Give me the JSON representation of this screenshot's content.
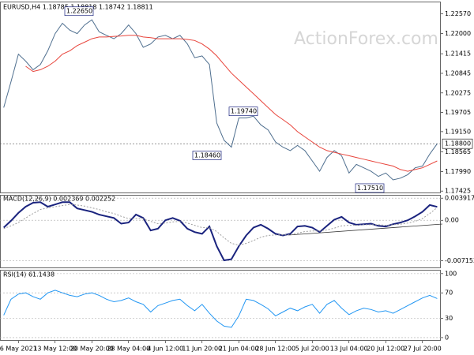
{
  "chart_data": [
    {
      "type": "line",
      "title": "EURUSD,H4  1.18785 1.18818 1.18742 1.18811",
      "watermark": "ActionForex.com",
      "ylim": [
        1.1736,
        1.2293
      ],
      "yticks": [
        {
          "value": 1.2257,
          "label": "1.22570"
        },
        {
          "value": 1.22,
          "label": "1.22000"
        },
        {
          "value": 1.21415,
          "label": "1.21415"
        },
        {
          "value": 1.20845,
          "label": "1.20845"
        },
        {
          "value": 1.20275,
          "label": "1.20275"
        },
        {
          "value": 1.19705,
          "label": "1.19705"
        },
        {
          "value": 1.1915,
          "label": "1.19150"
        },
        {
          "value": 1.18565,
          "label": "1.18565"
        },
        {
          "value": 1.1799,
          "label": "1.17990"
        },
        {
          "value": 1.17425,
          "label": "1.17425"
        }
      ],
      "price_line": {
        "value": 1.188,
        "label": "1.18800"
      },
      "annotations": [
        {
          "value": 1.2265,
          "label": "1.22650"
        },
        {
          "value": 1.1974,
          "label": "1.19740"
        },
        {
          "value": 1.1846,
          "label": "1.18460"
        },
        {
          "value": 1.1751,
          "label": "1.17510"
        }
      ],
      "series": [
        {
          "color": "#4f6f8f",
          "values": [
            1.1985,
            1.206,
            1.214,
            1.212,
            1.2095,
            1.211,
            1.215,
            1.22,
            1.223,
            1.221,
            1.22,
            1.2225,
            1.224,
            1.2205,
            1.2195,
            1.2185,
            1.22,
            1.2225,
            1.22,
            1.216,
            1.217,
            1.219,
            1.2195,
            1.2185,
            1.2195,
            1.217,
            1.213,
            1.2135,
            1.211,
            1.194,
            1.189,
            1.187,
            1.1955,
            1.1955,
            1.196,
            1.1935,
            1.192,
            1.1885,
            1.187,
            1.186,
            1.1875,
            1.186,
            1.183,
            1.18,
            1.184,
            1.186,
            1.1845,
            1.1795,
            1.182,
            1.181,
            1.18,
            1.1785,
            1.1795,
            1.1775,
            1.178,
            1.179,
            1.181,
            1.1815,
            1.185,
            1.188
          ]
        },
        {
          "color": "#e8453c",
          "values": [
            null,
            null,
            null,
            1.2105,
            1.209,
            1.2095,
            1.2105,
            1.212,
            1.214,
            1.215,
            1.2165,
            1.2175,
            1.2185,
            1.219,
            1.219,
            1.2192,
            1.2193,
            1.2195,
            1.2195,
            1.219,
            1.2188,
            1.2185,
            1.2185,
            1.2185,
            1.2185,
            1.2183,
            1.218,
            1.217,
            1.2155,
            1.2135,
            1.211,
            1.2085,
            1.2065,
            1.2045,
            1.2025,
            1.2005,
            1.1985,
            1.1965,
            1.195,
            1.1935,
            1.1915,
            1.19,
            1.1885,
            1.187,
            1.186,
            1.1855,
            1.185,
            1.1845,
            1.184,
            1.1835,
            1.183,
            1.1825,
            1.182,
            1.1815,
            1.1805,
            1.18,
            1.1805,
            1.181,
            1.182,
            1.183
          ]
        }
      ]
    },
    {
      "type": "line",
      "title": "MACD(12,26,9) 0.002369 0.002252",
      "ylim": [
        -0.0085,
        0.0045
      ],
      "yticks": [
        0.003917,
        {
          "value": 0,
          "label": "0.00"
        },
        -0.007152
      ],
      "series": [
        {
          "color": "#1a237e",
          "values": [
            -0.0013,
            -0.0001,
            0.0013,
            0.0024,
            0.0031,
            0.0032,
            0.0024,
            0.0028,
            0.0032,
            0.0032,
            0.0021,
            0.0018,
            0.0015,
            0.001,
            0.0007,
            0.0004,
            -0.0006,
            -0.0004,
            0.001,
            0.0004,
            -0.0018,
            -0.0015,
            0,
            0.0004,
            -0.0001,
            -0.0015,
            -0.0021,
            -0.0024,
            -0.0011,
            -0.0046,
            -0.0071,
            -0.0069,
            -0.0046,
            -0.0027,
            -0.0013,
            -0.0008,
            -0.0015,
            -0.0024,
            -0.0027,
            -0.0024,
            -0.0011,
            -0.001,
            -0.0013,
            -0.0021,
            -0.001,
            0.0001,
            0.0006,
            -0.0004,
            -0.0008,
            -0.0007,
            -0.0006,
            -0.001,
            -0.0011,
            -0.0007,
            -0.0004,
            0,
            0.0007,
            0.0015,
            0.0027,
            0.002369
          ]
        },
        {
          "color": "#9e9e9e",
          "values": [
            -0.0015,
            -0.001,
            -0.0004,
            0.0004,
            0.0012,
            0.0019,
            0.0022,
            0.0024,
            0.0026,
            0.0028,
            0.0027,
            0.0025,
            0.0022,
            0.0019,
            0.0015,
            0.0012,
            0.0007,
            0.0003,
            0.0003,
            0.0003,
            -0.0002,
            -0.0006,
            -0.0005,
            -0.0003,
            -0.0002,
            -0.0005,
            -0.0009,
            -0.0013,
            -0.0013,
            -0.002,
            -0.0031,
            -0.0041,
            -0.0044,
            -0.0041,
            -0.0036,
            -0.003,
            -0.0027,
            -0.0026,
            -0.0026,
            -0.0026,
            -0.0023,
            -0.002,
            -0.0019,
            -0.0019,
            -0.0017,
            -0.0014,
            -0.001,
            -0.0009,
            -0.0009,
            -0.0008,
            -0.0008,
            -0.0008,
            -0.0009,
            -0.0008,
            -0.0007,
            -0.0005,
            -0.0002,
            0.0003,
            0.0012,
            0.002252
          ]
        }
      ]
    },
    {
      "type": "line",
      "title": "RSI(14) 61.1438",
      "ylim": [
        -5,
        106
      ],
      "yticks": [
        100,
        70,
        30,
        0
      ],
      "categories": [
        null,
        null,
        "6 May 2021",
        null,
        null,
        null,
        null,
        "13 May 12:00",
        null,
        null,
        null,
        null,
        "20 May 20:00",
        null,
        null,
        null,
        null,
        "28 May 04:00",
        null,
        null,
        null,
        null,
        "4 Jun 12:00",
        null,
        null,
        null,
        null,
        "11 Jun 20:00",
        null,
        null,
        null,
        null,
        "21 Jun 04:00",
        null,
        null,
        null,
        null,
        "28 Jun 12:00",
        null,
        null,
        null,
        null,
        "5 Jul 20:00",
        null,
        null,
        null,
        null,
        "13 Jul 04:00",
        null,
        null,
        null,
        null,
        "20 Jul 12:00",
        null,
        null,
        null,
        null,
        "27 Jul 20:00",
        null,
        null
      ],
      "series": [
        {
          "color": "#2196f3",
          "values": [
            35,
            60,
            68,
            70,
            64,
            60,
            70,
            74,
            70,
            66,
            64,
            68,
            70,
            66,
            60,
            56,
            58,
            62,
            56,
            52,
            40,
            50,
            54,
            58,
            60,
            50,
            42,
            52,
            38,
            26,
            18,
            16,
            34,
            60,
            58,
            52,
            45,
            34,
            40,
            46,
            42,
            48,
            52,
            38,
            52,
            58,
            46,
            36,
            42,
            46,
            44,
            40,
            42,
            38,
            44,
            50,
            56,
            62,
            66,
            61.1438
          ]
        }
      ]
    }
  ]
}
